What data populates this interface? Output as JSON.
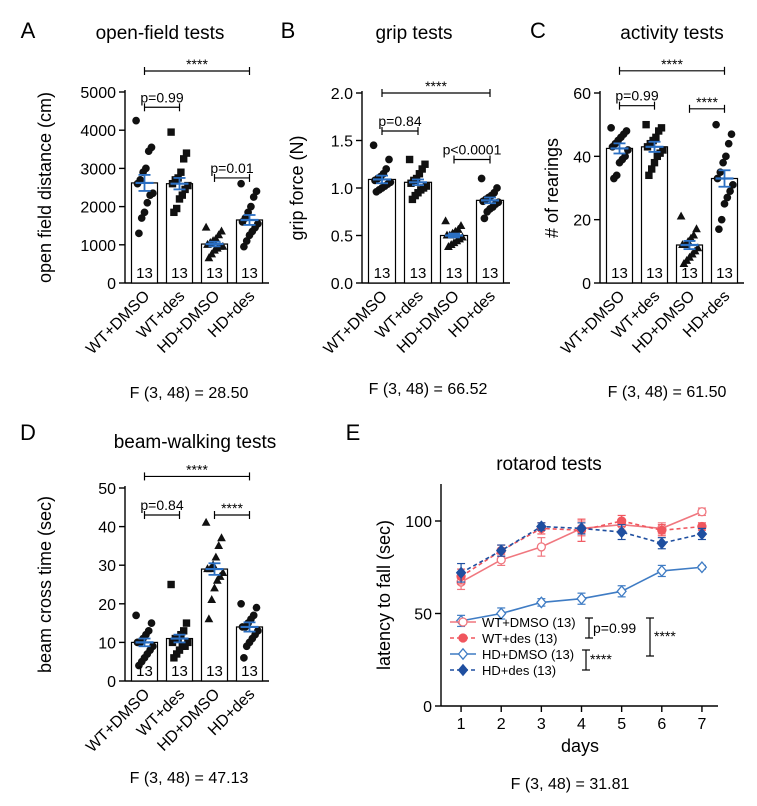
{
  "chart_data": [
    {
      "type": "bar",
      "letter": "A",
      "title": "open-field tests",
      "ylabel": "open field distance (cm)",
      "ylim": [
        0,
        5000
      ],
      "yticks": [
        0,
        1000,
        2000,
        3000,
        4000,
        5000
      ],
      "categories": [
        "WT+DMSO",
        "WT+des",
        "HD+DMSO",
        "HD+des"
      ],
      "n_labels": [
        "13",
        "13",
        "13",
        "13"
      ],
      "markers": [
        "circle",
        "square",
        "triangle",
        "circle"
      ],
      "values": [
        2620,
        2600,
        1020,
        1650
      ],
      "sem": [
        210,
        150,
        60,
        130
      ],
      "points": [
        [
          4250,
          3550,
          3450,
          3000,
          2900,
          2700,
          2600,
          2350,
          2300,
          2100,
          1850,
          1700,
          1300
        ],
        [
          3950,
          3400,
          3250,
          2900,
          2750,
          2700,
          2600,
          2550,
          2450,
          2300,
          2200,
          1950,
          1850
        ],
        [
          1450,
          1350,
          1250,
          1150,
          1100,
          1050,
          1000,
          950,
          950,
          900,
          850,
          750,
          650
        ],
        [
          2600,
          2400,
          2250,
          2000,
          1850,
          1700,
          1600,
          1550,
          1450,
          1350,
          1250,
          1100,
          950
        ]
      ],
      "comparisons": [
        {
          "from": 0,
          "to": 1,
          "label": "p=0.99",
          "y": 4600
        },
        {
          "from": 2,
          "to": 3,
          "label": "p=0.01",
          "y": 2750
        },
        {
          "from": 0,
          "to": 3,
          "label": "****",
          "y": 5550
        }
      ],
      "stat": "F (3, 48) = 28.50"
    },
    {
      "type": "bar",
      "letter": "B",
      "title": "grip tests",
      "ylabel": "grip force (N)",
      "ylim": [
        0,
        2.0
      ],
      "yticks": [
        "0.0",
        "0.5",
        "1.0",
        "1.5",
        "2.0"
      ],
      "categories": [
        "WT+DMSO",
        "WT+des",
        "HD+DMSO",
        "HD+des"
      ],
      "n_labels": [
        "13",
        "13",
        "13",
        "13"
      ],
      "markers": [
        "circle",
        "square",
        "triangle",
        "circle"
      ],
      "values": [
        1.09,
        1.06,
        0.5,
        0.87
      ],
      "sem": [
        0.04,
        0.03,
        0.02,
        0.03
      ],
      "points": [
        [
          1.45,
          1.3,
          1.2,
          1.15,
          1.12,
          1.1,
          1.08,
          1.06,
          1.04,
          1.02,
          1.0,
          0.98,
          0.96
        ],
        [
          1.3,
          1.25,
          1.2,
          1.15,
          1.1,
          1.08,
          1.05,
          1.02,
          1.0,
          0.98,
          0.95,
          0.92,
          0.88
        ],
        [
          0.65,
          0.6,
          0.56,
          0.54,
          0.52,
          0.5,
          0.5,
          0.48,
          0.46,
          0.44,
          0.42,
          0.4,
          0.38
        ],
        [
          1.1,
          1.0,
          0.95,
          0.92,
          0.9,
          0.88,
          0.86,
          0.85,
          0.83,
          0.8,
          0.78,
          0.75,
          0.68
        ]
      ],
      "comparisons": [
        {
          "from": 0,
          "to": 1,
          "label": "p=0.84",
          "y": 1.6
        },
        {
          "from": 2,
          "to": 3,
          "label": "p<0.0001",
          "y": 1.3
        },
        {
          "from": 0,
          "to": 3,
          "label": "****",
          "y": 2.0
        }
      ],
      "stat": "F (3, 48) = 66.52"
    },
    {
      "type": "bar",
      "letter": "C",
      "title": "activity tests",
      "ylabel": "# of rearings",
      "ylim": [
        0,
        60
      ],
      "yticks": [
        0,
        20,
        40,
        60
      ],
      "categories": [
        "WT+DMSO",
        "WT+des",
        "HD+DMSO",
        "HD+des"
      ],
      "n_labels": [
        "13",
        "13",
        "13",
        "13"
      ],
      "markers": [
        "circle",
        "square",
        "triangle",
        "circle"
      ],
      "values": [
        42.5,
        43,
        12,
        33
      ],
      "sem": [
        1.6,
        1.6,
        1.3,
        2.6
      ],
      "points": [
        [
          49,
          48,
          47,
          46,
          45,
          44,
          43,
          42,
          40,
          39,
          38,
          34,
          33
        ],
        [
          50,
          49,
          48,
          46,
          45,
          44,
          43,
          42,
          41,
          40,
          38,
          36,
          34
        ],
        [
          21,
          17,
          15,
          14,
          13,
          12,
          12,
          11,
          10,
          9,
          8,
          7,
          6
        ],
        [
          50,
          47,
          44,
          40,
          38,
          35,
          33,
          31,
          29,
          27,
          25,
          20,
          17
        ]
      ],
      "comparisons": [
        {
          "from": 0,
          "to": 1,
          "label": "p=0.99",
          "y": 56
        },
        {
          "from": 2,
          "to": 3,
          "label": "****",
          "y": 55
        },
        {
          "from": 0,
          "to": 3,
          "label": "****",
          "y": 67
        }
      ],
      "stat": "F (3, 48) = 61.50"
    },
    {
      "type": "bar",
      "letter": "D",
      "title": "beam-walking tests",
      "ylabel": "beam cross time (sec)",
      "ylim": [
        0,
        50
      ],
      "yticks": [
        0,
        10,
        20,
        30,
        40,
        50
      ],
      "categories": [
        "WT+DMSO",
        "WT+des",
        "HD+DMSO",
        "HD+des"
      ],
      "n_labels": [
        "13",
        "13",
        "13",
        "13"
      ],
      "markers": [
        "circle",
        "square",
        "triangle",
        "circle"
      ],
      "values": [
        10,
        11,
        29,
        14
      ],
      "sem": [
        1,
        1,
        1.5,
        1.2
      ],
      "points": [
        [
          17,
          15,
          13,
          12,
          11,
          10,
          10,
          9,
          8,
          7,
          6,
          5,
          4
        ],
        [
          25,
          15,
          13,
          12,
          11,
          11,
          10,
          10,
          9,
          9,
          8,
          7,
          6
        ],
        [
          41,
          37,
          35,
          32,
          30,
          29,
          29,
          28,
          27,
          26,
          24,
          21,
          16
        ],
        [
          20,
          19,
          17,
          16,
          15,
          14,
          14,
          13,
          12,
          11,
          10,
          9,
          6
        ]
      ],
      "comparisons": [
        {
          "from": 0,
          "to": 1,
          "label": "p=0.84",
          "y": 43
        },
        {
          "from": 2,
          "to": 3,
          "label": "****",
          "y": 43
        },
        {
          "from": 0,
          "to": 3,
          "label": "****",
          "y": 53
        }
      ],
      "stat": "F (3, 48) = 47.13"
    },
    {
      "type": "line",
      "letter": "E",
      "title": "rotarod tests",
      "xlabel": "days",
      "ylabel": "latency to fall (sec)",
      "x": [
        1,
        2,
        3,
        4,
        5,
        6,
        7
      ],
      "xlim": [
        0.5,
        7.4
      ],
      "ylim": [
        0,
        120
      ],
      "yticks": [
        0,
        50,
        100
      ],
      "series": [
        {
          "name": "WT+DMSO (13)",
          "values": [
            67,
            79,
            86,
            96,
            98,
            96,
            105
          ],
          "sem": [
            4,
            3,
            5,
            4,
            3,
            3,
            2
          ],
          "color": "#f0777f",
          "marker": "open-circle",
          "dashed": false
        },
        {
          "name": "WT+des (13)",
          "values": [
            70,
            84,
            96,
            95,
            100,
            95,
            97
          ],
          "sem": [
            4,
            3,
            3,
            6,
            3,
            3,
            2
          ],
          "color": "#f0565e",
          "marker": "filled-circle",
          "dashed": true
        },
        {
          "name": "HD+DMSO (13)",
          "values": [
            46,
            50,
            56,
            58,
            62,
            73,
            75
          ],
          "sem": [
            3,
            3,
            2,
            3,
            3,
            3,
            1
          ],
          "color": "#3f7cc4",
          "marker": "open-diamond",
          "dashed": false
        },
        {
          "name": "HD+des (13)",
          "values": [
            72,
            84,
            97,
            96,
            94,
            88,
            93
          ],
          "sem": [
            5,
            3,
            2,
            3,
            4,
            3,
            3
          ],
          "color": "#1f4fa0",
          "marker": "filled-diamond",
          "dashed": true
        }
      ],
      "annotations": [
        "p=0.99",
        "****",
        "****"
      ],
      "stat": "F (3, 48) = 31.81"
    }
  ]
}
